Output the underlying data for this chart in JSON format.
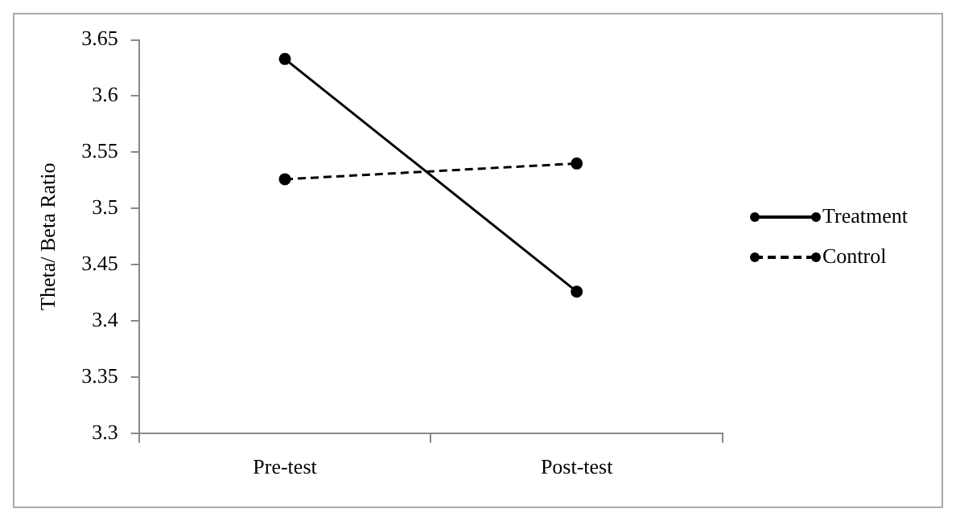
{
  "chart_data": {
    "type": "line",
    "ylabel": "Theta/ Beta Ratio",
    "categories": [
      "Pre-test",
      "Post-test"
    ],
    "series": [
      {
        "name": "Treatment",
        "color": "#000000",
        "values": [
          3.633,
          3.426
        ],
        "line_style": "solid"
      },
      {
        "name": "Control",
        "color": "#000000",
        "values": [
          3.526,
          3.54
        ],
        "line_style": "dashed"
      }
    ],
    "ylim": [
      3.3,
      3.65
    ],
    "yticks": [
      {
        "value": 3.3,
        "label": "3.3"
      },
      3.35,
      {
        "value": 3.4,
        "label": "3.4"
      },
      3.45,
      {
        "value": 3.5,
        "label": "3.5"
      },
      3.55,
      {
        "value": 3.6,
        "label": "3.6"
      },
      3.65
    ],
    "grid": false,
    "legend": "right",
    "marker": "circle"
  }
}
